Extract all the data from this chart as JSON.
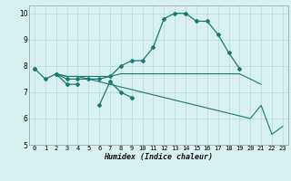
{
  "xlabel": "Humidex (Indice chaleur)",
  "x": [
    0,
    1,
    2,
    3,
    4,
    5,
    6,
    7,
    8,
    9,
    10,
    11,
    12,
    13,
    14,
    15,
    16,
    17,
    18,
    19,
    20,
    21,
    22,
    23
  ],
  "line1": [
    7.9,
    7.5,
    7.7,
    7.3,
    7.3,
    null,
    6.5,
    7.4,
    7.0,
    6.8,
    null,
    null,
    null,
    null,
    null,
    null,
    null,
    null,
    null,
    null,
    null,
    null,
    null,
    null
  ],
  "line2": [
    7.9,
    null,
    7.7,
    7.5,
    7.5,
    7.5,
    7.5,
    7.6,
    8.0,
    8.2,
    8.2,
    8.7,
    9.8,
    10.0,
    10.0,
    9.7,
    9.7,
    9.2,
    8.5,
    7.9,
    null,
    null,
    null,
    null
  ],
  "line3": [
    7.9,
    null,
    7.7,
    7.6,
    7.6,
    7.6,
    7.6,
    7.6,
    7.7,
    7.7,
    7.7,
    7.7,
    7.7,
    7.7,
    7.7,
    7.7,
    7.7,
    7.7,
    7.7,
    7.7,
    7.5,
    7.3,
    null,
    null
  ],
  "line4": [
    7.9,
    null,
    7.7,
    7.6,
    7.6,
    7.5,
    7.4,
    7.3,
    7.2,
    7.1,
    7.0,
    6.9,
    6.8,
    6.7,
    6.6,
    6.5,
    6.4,
    6.3,
    6.2,
    6.1,
    6.0,
    6.5,
    5.4,
    5.7
  ],
  "line_color": "#1a7a6e",
  "bg_color": "#d8f0f0",
  "grid_color": "#aed4d4",
  "ylim": [
    5.0,
    10.3
  ],
  "xlim": [
    -0.5,
    23.5
  ],
  "yticks": [
    5,
    6,
    7,
    8,
    9,
    10
  ],
  "xticks": [
    0,
    1,
    2,
    3,
    4,
    5,
    6,
    7,
    8,
    9,
    10,
    11,
    12,
    13,
    14,
    15,
    16,
    17,
    18,
    19,
    20,
    21,
    22,
    23
  ],
  "tick_fontsize": 5.0,
  "xlabel_fontsize": 6.0
}
